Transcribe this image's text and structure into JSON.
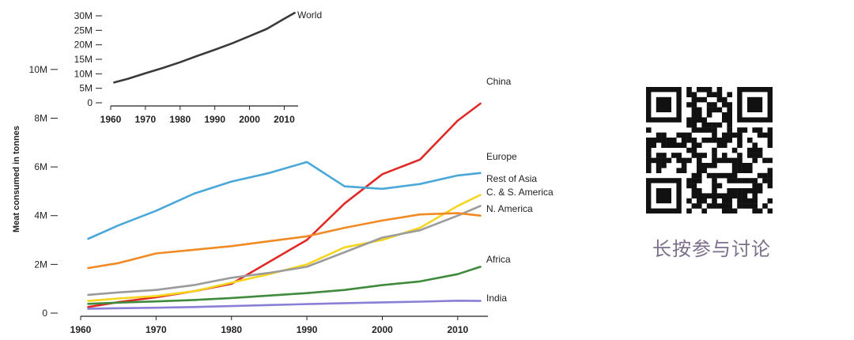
{
  "chart_data": [
    {
      "type": "line",
      "title": "",
      "xlabel": "",
      "ylabel": "Meat consumed in tonnes",
      "xlim": [
        1960,
        2014
      ],
      "ylim": [
        0,
        11000000
      ],
      "grid": false,
      "x_ticks": [
        1960,
        1970,
        1980,
        1990,
        2000,
        2010
      ],
      "x_tick_labels": [
        "1960",
        "1970",
        "1980",
        "1990",
        "2000",
        "2010"
      ],
      "y_ticks": [
        0,
        2000000,
        4000000,
        6000000,
        8000000,
        10000000
      ],
      "y_tick_labels": [
        "0",
        "2M",
        "4M",
        "6M",
        "8M",
        "10M"
      ],
      "x": [
        1961,
        1965,
        1970,
        1975,
        1980,
        1985,
        1990,
        1995,
        2000,
        2005,
        2010,
        2013
      ],
      "series": [
        {
          "name": "China",
          "color": "#e02a27",
          "values": [
            250000,
            450000,
            650000,
            900000,
            1200000,
            2100000,
            3000000,
            4500000,
            5700000,
            6300000,
            7900000,
            8600000
          ]
        },
        {
          "name": "Europe",
          "color": "#4aa8d8",
          "values": [
            3050000,
            3600000,
            4200000,
            4900000,
            5400000,
            5750000,
            6200000,
            5200000,
            5100000,
            5300000,
            5650000,
            5750000
          ]
        },
        {
          "name": "Rest of Asia",
          "color": "#f5d51e",
          "values": [
            500000,
            600000,
            700000,
            900000,
            1250000,
            1600000,
            2000000,
            2700000,
            3000000,
            3500000,
            4400000,
            4850000
          ]
        },
        {
          "name": "C. & S. America",
          "color": "#9b9b9b",
          "values": [
            750000,
            850000,
            950000,
            1150000,
            1450000,
            1650000,
            1900000,
            2500000,
            3100000,
            3400000,
            4000000,
            4400000
          ]
        },
        {
          "name": "N. America",
          "color": "#f08a24",
          "values": [
            1850000,
            2050000,
            2450000,
            2600000,
            2750000,
            2950000,
            3150000,
            3500000,
            3800000,
            4050000,
            4100000,
            4000000
          ]
        },
        {
          "name": "Africa",
          "color": "#3f8a3c",
          "values": [
            380000,
            430000,
            480000,
            540000,
            620000,
            720000,
            820000,
            950000,
            1150000,
            1300000,
            1600000,
            1900000
          ]
        },
        {
          "name": "India",
          "color": "#8a7fd6",
          "values": [
            180000,
            200000,
            220000,
            250000,
            290000,
            330000,
            370000,
            410000,
            440000,
            470000,
            510000,
            500000
          ]
        }
      ]
    },
    {
      "type": "line",
      "title": "",
      "xlabel": "",
      "ylabel": "",
      "xlim": [
        1960,
        2014
      ],
      "ylim": [
        0,
        30000000
      ],
      "grid": false,
      "x_ticks": [
        1960,
        1970,
        1980,
        1990,
        2000,
        2010
      ],
      "x_tick_labels": [
        "1960",
        "1970",
        "1980",
        "1990",
        "2000",
        "2010"
      ],
      "y_ticks": [
        0,
        5000000,
        10000000,
        15000000,
        20000000,
        25000000,
        30000000
      ],
      "y_tick_labels": [
        "0",
        "5M",
        "10M",
        "15M",
        "20M",
        "25M",
        "30M"
      ],
      "x": [
        1961,
        1965,
        1970,
        1975,
        1980,
        1985,
        1990,
        1995,
        2000,
        2005,
        2010,
        2013
      ],
      "series": [
        {
          "name": "World",
          "color": "#3a3a3a",
          "values": [
            7000000,
            8300000,
            10200000,
            12000000,
            14000000,
            16200000,
            18300000,
            20500000,
            23000000,
            25500000,
            29000000,
            31000000
          ]
        }
      ]
    }
  ],
  "side_panel": {
    "qr_alt": "qr-code",
    "caption": "长按参与讨论"
  }
}
